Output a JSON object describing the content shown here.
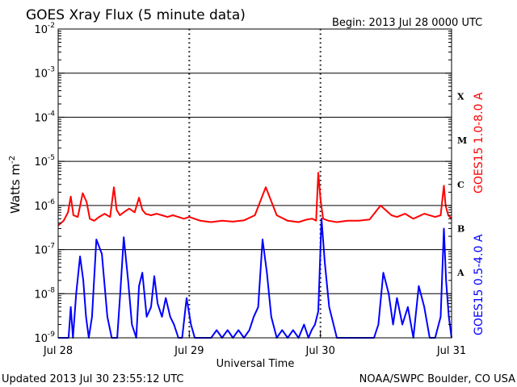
{
  "chart_data": {
    "type": "line",
    "title": "GOES Xray Flux (5 minute data)",
    "begin_label": "Begin:  2013 Jul 28 0000 UTC",
    "xlabel": "Universal Time",
    "ylabel": "Watts m",
    "ylabel_exponent": "-2",
    "y_scale": "log",
    "ylim": [
      1e-09,
      0.01
    ],
    "y_ticks": [
      {
        "value": 0.01,
        "mantissa": "10",
        "exp": "-2"
      },
      {
        "value": 0.001,
        "mantissa": "10",
        "exp": "-3"
      },
      {
        "value": 0.0001,
        "mantissa": "10",
        "exp": "-4"
      },
      {
        "value": 1e-05,
        "mantissa": "10",
        "exp": "-5"
      },
      {
        "value": 1e-06,
        "mantissa": "10",
        "exp": "-6"
      },
      {
        "value": 1e-07,
        "mantissa": "10",
        "exp": "-7"
      },
      {
        "value": 1e-08,
        "mantissa": "10",
        "exp": "-8"
      },
      {
        "value": 1e-09,
        "mantissa": "10",
        "exp": "-9"
      }
    ],
    "xlim": [
      0,
      72
    ],
    "x_ticks": [
      {
        "hour": 0,
        "label": "Jul 28"
      },
      {
        "hour": 24,
        "label": "Jul 29"
      },
      {
        "hour": 48,
        "label": "Jul 30"
      },
      {
        "hour": 72,
        "label": "Jul 31"
      }
    ],
    "flare_classes": [
      {
        "label": "X",
        "value": 0.0003
      },
      {
        "label": "M",
        "value": 3e-05
      },
      {
        "label": "C",
        "value": 3e-06
      },
      {
        "label": "B",
        "value": 3e-07
      },
      {
        "label": "A",
        "value": 3e-08
      }
    ],
    "series": [
      {
        "name": "GOES15 1.0-8.0 A",
        "color": "#ff0000",
        "x": [
          0,
          1,
          1.8,
          2.3,
          2.8,
          3.6,
          4.5,
          5.2,
          5.8,
          6.6,
          7.5,
          8.5,
          9.5,
          10.2,
          10.7,
          11.3,
          12,
          13,
          14,
          14.8,
          15.4,
          16,
          17,
          18,
          19,
          20,
          21,
          22,
          23,
          24,
          26,
          28,
          30,
          32,
          34,
          36,
          38,
          40,
          42,
          44,
          45.5,
          46.5,
          47.2,
          47.6,
          48,
          48.5,
          49.5,
          51,
          53,
          55,
          57,
          59,
          61,
          62,
          63.5,
          65,
          67,
          69,
          70,
          70.6,
          70.9,
          71.4,
          72
        ],
        "values": [
          3.5e-07,
          4.5e-07,
          7e-07,
          1.6e-06,
          6e-07,
          5.5e-07,
          1.9e-06,
          1.2e-06,
          5e-07,
          4.5e-07,
          5.5e-07,
          6.5e-07,
          5.5e-07,
          2.6e-06,
          8e-07,
          6e-07,
          7e-07,
          8.5e-07,
          7e-07,
          1.5e-06,
          8e-07,
          6.5e-07,
          6e-07,
          6.5e-07,
          6e-07,
          5.5e-07,
          6e-07,
          5.5e-07,
          5e-07,
          5.5e-07,
          4.5e-07,
          4.2e-07,
          4.5e-07,
          4.3e-07,
          4.6e-07,
          6e-07,
          2.6e-06,
          6e-07,
          4.5e-07,
          4.2e-07,
          4.8e-07,
          5e-07,
          4.5e-07,
          5.5e-06,
          1.4e-06,
          5e-07,
          4.5e-07,
          4.2e-07,
          4.5e-07,
          4.5e-07,
          4.8e-07,
          1e-06,
          6e-07,
          5.5e-07,
          6.5e-07,
          5e-07,
          6.5e-07,
          5.5e-07,
          6e-07,
          2.8e-06,
          1e-06,
          6e-07,
          5e-07
        ]
      },
      {
        "name": "GOES15 0.5-4.0 A",
        "color": "#0000ff",
        "x": [
          0,
          1,
          1.5,
          1.9,
          2.3,
          2.7,
          3.3,
          4,
          4.6,
          5.1,
          5.6,
          6.2,
          7,
          8,
          9,
          9.8,
          10.3,
          10.8,
          11.4,
          12,
          12.8,
          13.5,
          14.3,
          14.8,
          15.4,
          16.2,
          17,
          17.6,
          18.2,
          19,
          19.7,
          20.5,
          21.2,
          22,
          22.7,
          23.5,
          24.3,
          25,
          26,
          27,
          28,
          29,
          30,
          31,
          32,
          33,
          34,
          35,
          35.8,
          36.6,
          37.4,
          38.2,
          39,
          40,
          41,
          42,
          43,
          44,
          45,
          45.8,
          46.4,
          47,
          47.6,
          48.2,
          48.8,
          49.6,
          51,
          53,
          55,
          56,
          57,
          57.8,
          58.6,
          59.5,
          60.5,
          61.3,
          62,
          63,
          64,
          65,
          66,
          67,
          68,
          69,
          70,
          70.6,
          71,
          71.5,
          72
        ],
        "values": [
          1e-09,
          1e-09,
          1e-09,
          1e-09,
          5e-09,
          1e-09,
          1e-08,
          7e-08,
          2e-08,
          3e-09,
          1e-09,
          3e-09,
          1.7e-07,
          8e-08,
          3e-09,
          1e-09,
          1e-09,
          1e-09,
          1.2e-08,
          1.9e-07,
          2e-08,
          2e-09,
          1e-09,
          1.5e-08,
          3e-08,
          3e-09,
          5e-09,
          2.5e-08,
          6e-09,
          3e-09,
          8e-09,
          3e-09,
          2e-09,
          1e-09,
          1e-09,
          8e-09,
          2e-09,
          1e-09,
          1e-09,
          1e-09,
          1e-09,
          1.5e-09,
          1e-09,
          1.5e-09,
          1e-09,
          1.5e-09,
          1e-09,
          1.5e-09,
          3e-09,
          5e-09,
          1.7e-07,
          3e-08,
          3e-09,
          1e-09,
          1.5e-09,
          1e-09,
          1.5e-09,
          1e-09,
          2e-09,
          1e-09,
          1.5e-09,
          2e-09,
          4e-09,
          5e-07,
          5e-08,
          5e-09,
          1e-09,
          1e-09,
          1e-09,
          1e-09,
          1e-09,
          1e-09,
          2e-09,
          3e-08,
          1e-08,
          2e-09,
          8e-09,
          2e-09,
          5e-09,
          1e-09,
          1.5e-08,
          5e-09,
          1e-09,
          1e-09,
          3e-09,
          3e-07,
          2e-08,
          3e-09,
          1e-09
        ]
      }
    ]
  },
  "footer": {
    "updated": "Updated 2013 Jul 30 23:55:12 UTC",
    "credit": "NOAA/SWPC Boulder, CO USA"
  }
}
